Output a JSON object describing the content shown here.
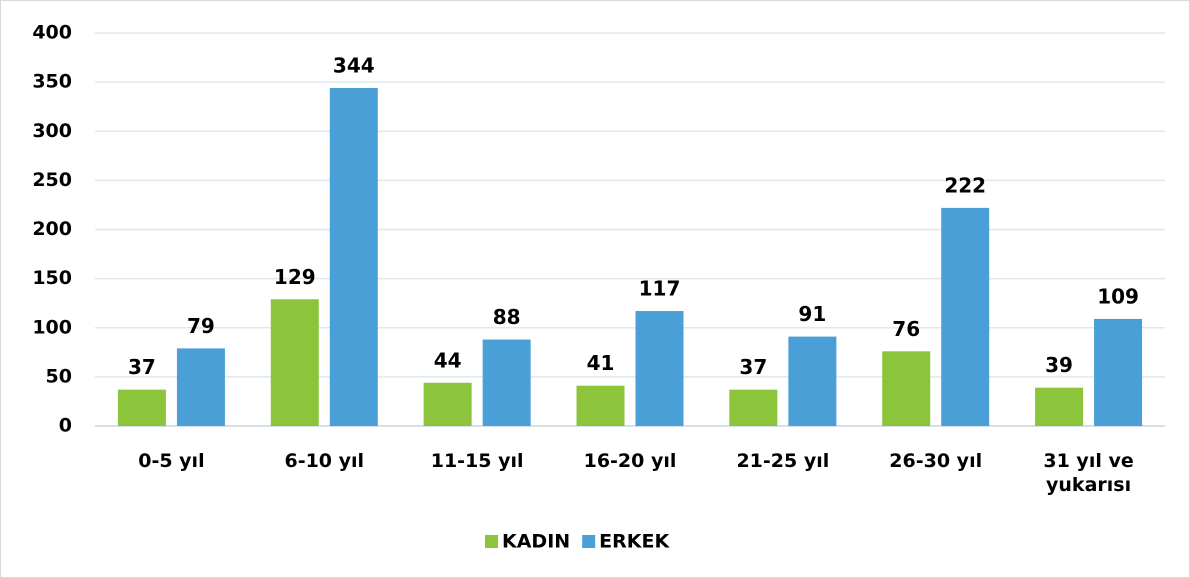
{
  "chart_data": {
    "type": "bar",
    "categories": [
      "0-5 yıl",
      "6-10 yıl",
      "11-15 yıl",
      "16-20 yıl",
      "21-25 yıl",
      "26-30 yıl",
      "31 yıl ve yukarısı"
    ],
    "series": [
      {
        "name": "KADIN",
        "color": "#8cc43c",
        "values": [
          37,
          129,
          44,
          41,
          37,
          76,
          39
        ]
      },
      {
        "name": "ERKEK",
        "color": "#4a9fd6",
        "values": [
          79,
          344,
          88,
          117,
          91,
          222,
          109
        ]
      }
    ],
    "ylim": [
      0,
      400
    ],
    "yticks": [
      0,
      50,
      100,
      150,
      200,
      250,
      300,
      350,
      400
    ],
    "grid": true,
    "legend": "bottom"
  }
}
